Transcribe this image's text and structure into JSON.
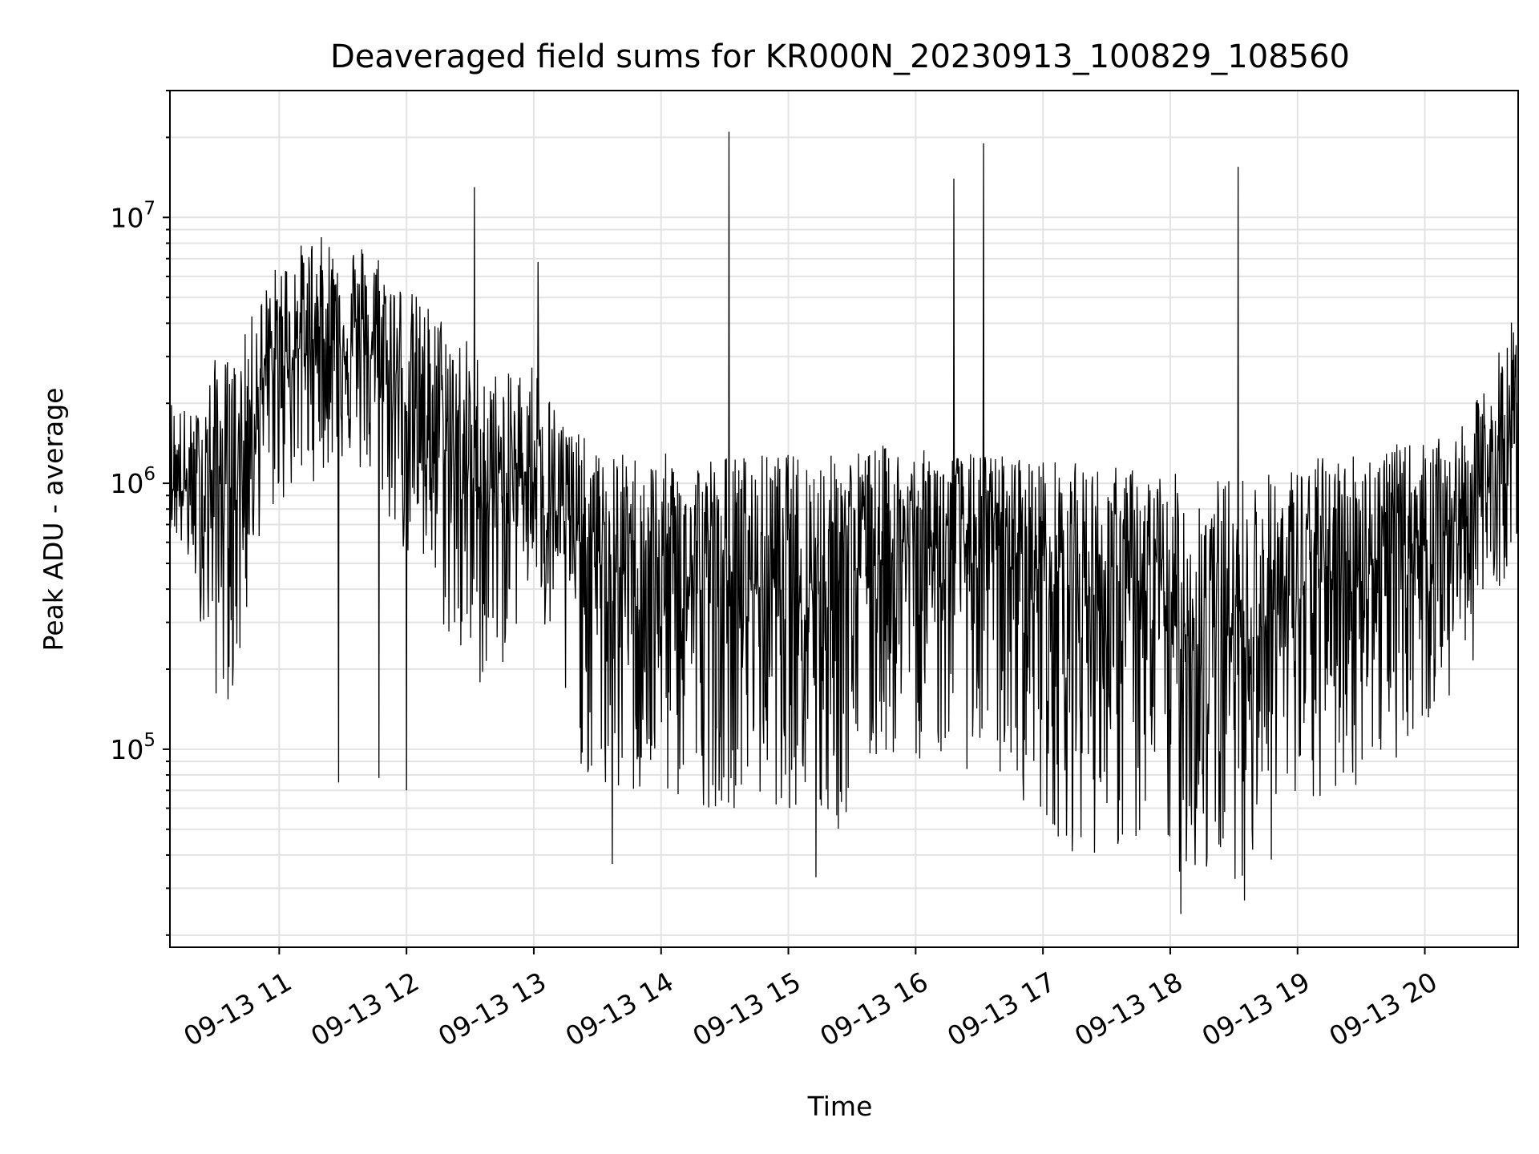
{
  "chart_data": {
    "type": "line",
    "title": "Deaveraged field sums for KR000N_20230913_100829_108560",
    "xlabel": "Time",
    "ylabel": "Peak ADU - average",
    "yscale": "log",
    "ylim": [
      18000,
      30000000
    ],
    "xlim": [
      "2023-09-13 10:08:29",
      "2023-09-13 20:44:00"
    ],
    "grid": true,
    "x_ticks": [
      {
        "t": "2023-09-13 11:00",
        "label": "09-13 11"
      },
      {
        "t": "2023-09-13 12:00",
        "label": "09-13 12"
      },
      {
        "t": "2023-09-13 13:00",
        "label": "09-13 13"
      },
      {
        "t": "2023-09-13 14:00",
        "label": "09-13 14"
      },
      {
        "t": "2023-09-13 15:00",
        "label": "09-13 15"
      },
      {
        "t": "2023-09-13 16:00",
        "label": "09-13 16"
      },
      {
        "t": "2023-09-13 17:00",
        "label": "09-13 17"
      },
      {
        "t": "2023-09-13 18:00",
        "label": "09-13 18"
      },
      {
        "t": "2023-09-13 19:00",
        "label": "09-13 19"
      },
      {
        "t": "2023-09-13 20:00",
        "label": "09-13 20"
      }
    ],
    "y_ticks": [
      {
        "value": 100000,
        "base": "10",
        "exp": "5"
      },
      {
        "value": 1000000,
        "base": "10",
        "exp": "6"
      },
      {
        "value": 10000000,
        "base": "10",
        "exp": "7"
      }
    ],
    "series": [
      {
        "color": "#000000",
        "envelope": [
          {
            "t": "2023-09-13 10:08",
            "upper": 2200000,
            "median": 1000000,
            "lower": 700000
          },
          {
            "t": "2023-09-13 10:20",
            "upper": 1800000,
            "median": 900000,
            "lower": 400000
          },
          {
            "t": "2023-09-13 10:30",
            "upper": 3000000,
            "median": 1000000,
            "lower": 150000
          },
          {
            "t": "2023-09-13 10:40",
            "upper": 3000000,
            "median": 1000000,
            "lower": 150000
          },
          {
            "t": "2023-09-13 10:50",
            "upper": 5000000,
            "median": 2200000,
            "lower": 600000
          },
          {
            "t": "2023-09-13 11:00",
            "upper": 7000000,
            "median": 2800000,
            "lower": 800000
          },
          {
            "t": "2023-09-13 11:15",
            "upper": 8500000,
            "median": 3500000,
            "lower": 1000000
          },
          {
            "t": "2023-09-13 11:30",
            "upper": 8500000,
            "median": 3500000,
            "lower": 1200000
          },
          {
            "t": "2023-09-13 11:45",
            "upper": 8000000,
            "median": 3000000,
            "lower": 900000
          },
          {
            "t": "2023-09-13 12:00",
            "upper": 5500000,
            "median": 2000000,
            "lower": 500000
          },
          {
            "t": "2023-09-13 12:15",
            "upper": 4500000,
            "median": 1500000,
            "lower": 300000
          },
          {
            "t": "2023-09-13 12:30",
            "upper": 3500000,
            "median": 1000000,
            "lower": 150000
          },
          {
            "t": "2023-09-13 12:45",
            "upper": 2500000,
            "median": 900000,
            "lower": 200000
          },
          {
            "t": "2023-09-13 13:00",
            "upper": 3000000,
            "median": 1200000,
            "lower": 400000
          },
          {
            "t": "2023-09-13 13:10",
            "upper": 2000000,
            "median": 800000,
            "lower": 150000
          },
          {
            "t": "2023-09-13 13:30",
            "upper": 1300000,
            "median": 500000,
            "lower": 60000
          },
          {
            "t": "2023-09-13 14:00",
            "upper": 1300000,
            "median": 400000,
            "lower": 60000
          },
          {
            "t": "2023-09-13 14:30",
            "upper": 1300000,
            "median": 400000,
            "lower": 60000
          },
          {
            "t": "2023-09-13 15:00",
            "upper": 1300000,
            "median": 450000,
            "lower": 60000
          },
          {
            "t": "2023-09-13 15:20",
            "upper": 1300000,
            "median": 450000,
            "lower": 40000
          },
          {
            "t": "2023-09-13 15:45",
            "upper": 1400000,
            "median": 550000,
            "lower": 90000
          },
          {
            "t": "2023-09-13 16:15",
            "upper": 1300000,
            "median": 600000,
            "lower": 90000
          },
          {
            "t": "2023-09-13 16:45",
            "upper": 1300000,
            "median": 550000,
            "lower": 70000
          },
          {
            "t": "2023-09-13 17:15",
            "upper": 1200000,
            "median": 400000,
            "lower": 40000
          },
          {
            "t": "2023-09-13 17:45",
            "upper": 1150000,
            "median": 350000,
            "lower": 40000
          },
          {
            "t": "2023-09-13 18:15",
            "upper": 1050000,
            "median": 250000,
            "lower": 30000
          },
          {
            "t": "2023-09-13 18:45",
            "upper": 1100000,
            "median": 300000,
            "lower": 35000
          },
          {
            "t": "2023-09-13 19:15",
            "upper": 1300000,
            "median": 450000,
            "lower": 60000
          },
          {
            "t": "2023-09-13 19:45",
            "upper": 1400000,
            "median": 550000,
            "lower": 90000
          },
          {
            "t": "2023-09-13 20:15",
            "upper": 1500000,
            "median": 700000,
            "lower": 150000
          },
          {
            "t": "2023-09-13 20:30",
            "upper": 2500000,
            "median": 1000000,
            "lower": 300000
          },
          {
            "t": "2023-09-13 20:44",
            "upper": 5000000,
            "median": 1500000,
            "lower": 600000
          }
        ],
        "spikes": [
          {
            "t": "2023-09-13 12:32",
            "value": 13000000
          },
          {
            "t": "2023-09-13 13:02",
            "value": 6800000
          },
          {
            "t": "2023-09-13 14:32",
            "value": 21000000
          },
          {
            "t": "2023-09-13 16:18",
            "value": 14000000
          },
          {
            "t": "2023-09-13 16:32",
            "value": 19000000
          },
          {
            "t": "2023-09-13 18:32",
            "value": 15500000
          },
          {
            "t": "2023-09-13 11:28",
            "value": 75000
          },
          {
            "t": "2023-09-13 11:47",
            "value": 78000
          },
          {
            "t": "2023-09-13 12:00",
            "value": 70000
          },
          {
            "t": "2023-09-13 13:37",
            "value": 37000
          },
          {
            "t": "2023-09-13 15:13",
            "value": 33000
          },
          {
            "t": "2023-09-13 18:05",
            "value": 24000
          },
          {
            "t": "2023-09-13 18:35",
            "value": 27000
          }
        ]
      }
    ]
  }
}
